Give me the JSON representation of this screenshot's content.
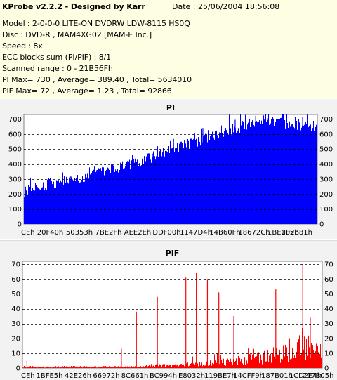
{
  "header": {
    "title": "KProbe v2.2.2 - Designed by Karr",
    "date": "Date : 25/06/2004 18:56:08",
    "model": "Model : 2-0-0-0 LITE-ON DVDRW LDW-8115   HS0Q",
    "disc": "Disc : DVD-R , MAM4XG02 [MAM-E Inc.]",
    "speed": "Speed : 8x",
    "ecc": "ECC blocks sum (PI/PIF) : 8/1",
    "scanned": "Scanned range : 0 - 21B56Fh",
    "pi_stats": "PI Max= 730 , Average= 389.40 , Total= 5634010",
    "pif_stats": "PIF Max= 72 , Average= 1.23 , Total= 92866"
  },
  "colors": {
    "pi_fill": "#0000ff",
    "pif_fill": "#ff0000",
    "grid": "#000000",
    "panel_bg": "#f2f2f2",
    "info_bg": "#fefee2"
  },
  "chart_data": [
    {
      "type": "area",
      "title": "PI",
      "xlabel": "",
      "ylabel": "",
      "ylim": [
        0,
        730
      ],
      "yticks": [
        0,
        100,
        200,
        300,
        400,
        500,
        600,
        700
      ],
      "xticks": [
        "CEh",
        "20F40h",
        "50353h",
        "7BE2Fh",
        "AEE2Eh",
        "DDF00h",
        "1147D4h",
        "14B60Fh",
        "18672Ch",
        "1BE002h",
        "1F5B81h"
      ],
      "grid": "horizontal dashed",
      "series": [
        {
          "name": "",
          "values": [
            215,
            230,
            225,
            240,
            232,
            250,
            248,
            262,
            255,
            270,
            268,
            282,
            278,
            292,
            300,
            296,
            310,
            318,
            325,
            330,
            340,
            352,
            345,
            360,
            372,
            368,
            385,
            395,
            388,
            402,
            412,
            420,
            415,
            432,
            445,
            440,
            458,
            470,
            478,
            485,
            498,
            505,
            512,
            520,
            530,
            538,
            545,
            552,
            560,
            575,
            585,
            592,
            598,
            605,
            612,
            618,
            625,
            632,
            640,
            648,
            655,
            662,
            670,
            678,
            690,
            700,
            695,
            690,
            682,
            676,
            672,
            668,
            665,
            662,
            660,
            658,
            655,
            652,
            650,
            648
          ],
          "spikes": [
            [
              0.16,
              318
            ],
            [
              0.27,
              372
            ],
            [
              0.36,
              420
            ],
            [
              0.44,
              470
            ],
            [
              0.51,
              568
            ],
            [
              0.61,
              640
            ],
            [
              0.7,
              728
            ],
            [
              0.72,
              695
            ],
            [
              0.79,
              722
            ],
            [
              0.83,
              705
            ],
            [
              0.95,
              712
            ]
          ]
        }
      ]
    },
    {
      "type": "bar",
      "title": "PIF",
      "xlabel": "",
      "ylabel": "",
      "ylim": [
        0,
        72
      ],
      "yticks": [
        0,
        10,
        20,
        30,
        40,
        50,
        60,
        70
      ],
      "xticks": [
        "CEh",
        "1BFE5h",
        "42E26h",
        "66972h",
        "8C661h",
        "BC994h",
        "E8032h",
        "119BE7h",
        "14CFF9h",
        "187B01h",
        "1CD2E4h",
        "217B05h"
      ],
      "grid": "horizontal dashed",
      "series": [
        {
          "name": "",
          "baseline": [
            1,
            1,
            1,
            1,
            1,
            1,
            1,
            1,
            1,
            1,
            1,
            1,
            1,
            1,
            1,
            1,
            1,
            1,
            1,
            1,
            1,
            1,
            1,
            1,
            1,
            1,
            1,
            1,
            1,
            1,
            1,
            1,
            1,
            2,
            2,
            2,
            2,
            2,
            2,
            2,
            2,
            2,
            2,
            3,
            3,
            3,
            3,
            3,
            3,
            4,
            4,
            4,
            4,
            5,
            5,
            5,
            5,
            6,
            6,
            6,
            7,
            7,
            8,
            8,
            9,
            9,
            10,
            10,
            11,
            12,
            13,
            14,
            15,
            16,
            17,
            18,
            19,
            20,
            21,
            22
          ],
          "spikes": [
            [
              0.015,
              5
            ],
            [
              0.33,
              13
            ],
            [
              0.38,
              38
            ],
            [
              0.45,
              48
            ],
            [
              0.545,
              61
            ],
            [
              0.58,
              64
            ],
            [
              0.617,
              60
            ],
            [
              0.655,
              51
            ],
            [
              0.705,
              35
            ],
            [
              0.845,
              53
            ],
            [
              0.935,
              70
            ],
            [
              0.96,
              34
            ]
          ]
        }
      ]
    }
  ]
}
